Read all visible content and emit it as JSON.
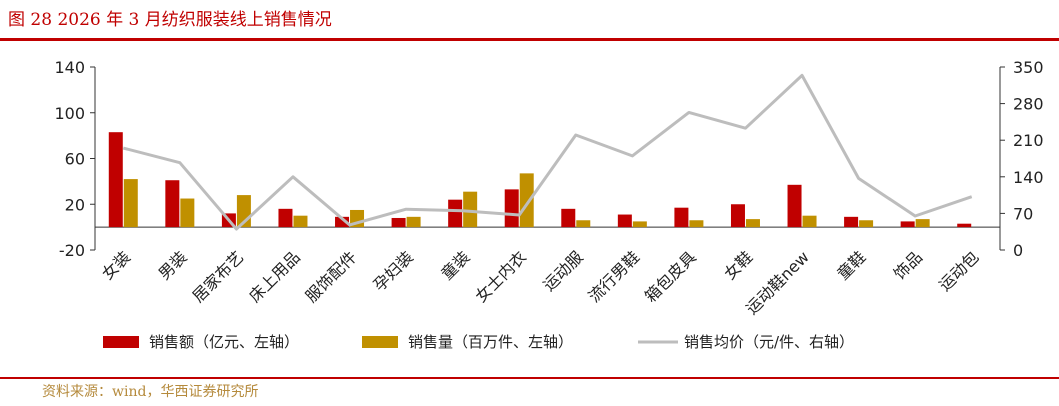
{
  "header": {
    "title": "图 28  2026 年 3 月纺织服装线上销售情况"
  },
  "footer": {
    "source": "资料来源：wind，华西证券研究所"
  },
  "colors": {
    "sales": "#c00000",
    "volume": "#c09000",
    "price": "#bdbdbd",
    "accent": "#c00000"
  },
  "chart_data": {
    "type": "bar",
    "categories": [
      "女装",
      "男装",
      "居家布艺",
      "床上用品",
      "服饰配件",
      "孕妇装",
      "童装",
      "女士内衣",
      "运动服",
      "流行男鞋",
      "箱包皮具",
      "女鞋",
      "运动鞋new",
      "童鞋",
      "饰品",
      "运动包"
    ],
    "left_axis": {
      "min": -20,
      "max": 140,
      "ticks": [
        -20,
        20,
        60,
        100,
        140
      ]
    },
    "right_axis": {
      "min": 0,
      "max": 350,
      "ticks": [
        0,
        70,
        140,
        210,
        280,
        350
      ]
    },
    "series": [
      {
        "name": "销售额（亿元、左轴）",
        "type": "bar",
        "axis": "left",
        "values": [
          83,
          41,
          12,
          16,
          9,
          8,
          24,
          33,
          16,
          11,
          17,
          20,
          37,
          9,
          5,
          3
        ]
      },
      {
        "name": "销售量（百万件、左轴）",
        "type": "bar",
        "axis": "left",
        "values": [
          42,
          25,
          28,
          10,
          15,
          9,
          31,
          47,
          6,
          5,
          6,
          7,
          10,
          6,
          7,
          0
        ]
      },
      {
        "name": "销售均价（元/件、右轴）",
        "type": "line",
        "axis": "right",
        "values": [
          195,
          167,
          40,
          140,
          48,
          78,
          75,
          67,
          220,
          180,
          263,
          233,
          334,
          137,
          65,
          102
        ]
      }
    ],
    "legend_position": "bottom",
    "grid": false
  }
}
